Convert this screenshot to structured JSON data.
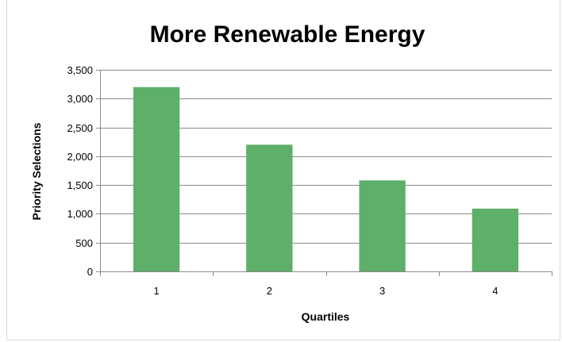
{
  "chart_data": {
    "type": "bar",
    "title": "More Renewable Energy",
    "xlabel": "Quartiles",
    "ylabel": "Priority Selections",
    "categories": [
      "1",
      "2",
      "3",
      "4"
    ],
    "values": [
      3200,
      2200,
      1580,
      1090
    ],
    "ylim": [
      0,
      3500
    ],
    "yticks": [
      0,
      500,
      1000,
      1500,
      2000,
      2500,
      3000,
      3500
    ],
    "ytick_labels": [
      "0",
      "500",
      "1,000",
      "1,500",
      "2,000",
      "2,500",
      "3,000",
      "3,500"
    ],
    "grid": true,
    "legend": "none",
    "bar_color": "#5daf6a"
  }
}
